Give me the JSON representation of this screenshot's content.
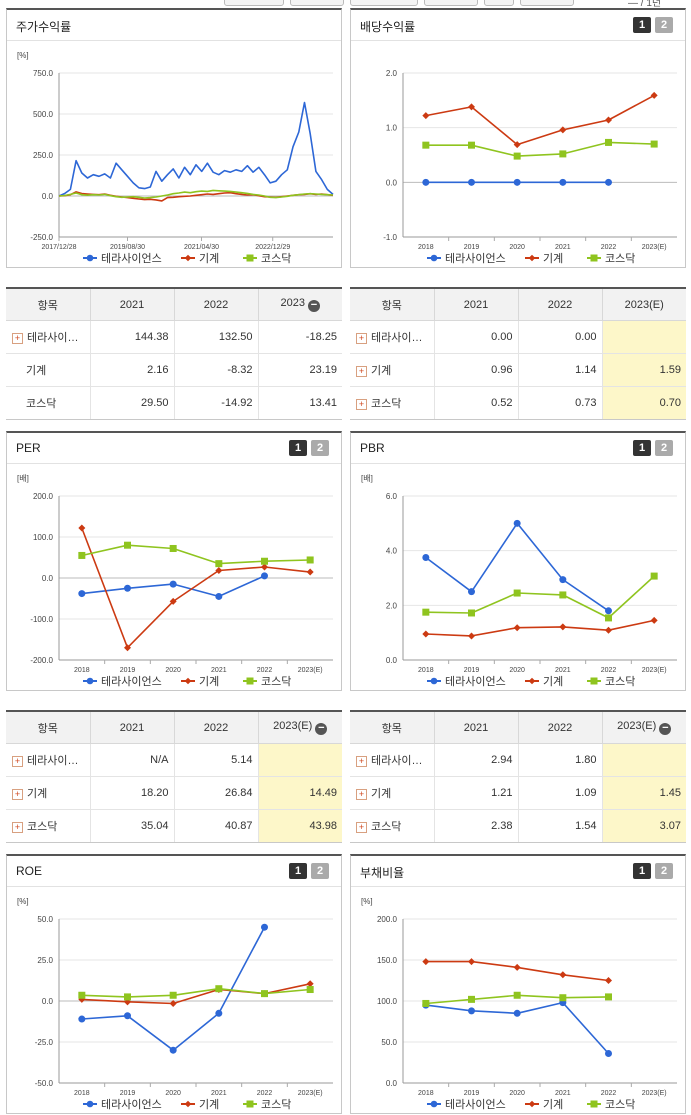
{
  "colors": {
    "tera": "#2d67d6",
    "mach": "#cc3a12",
    "kosdaq": "#8fc41f"
  },
  "legend": [
    "테라사이언스",
    "기계",
    "코스닥"
  ],
  "top_strip": {
    "right_text": "— / 1년"
  },
  "panels": [
    {
      "id": "stock",
      "title": "주가수익률",
      "unit": "[%]",
      "pager": null,
      "chart_data": {
        "type": "line",
        "ylim": [
          -250,
          750
        ],
        "yticks": [
          "750.0",
          "500.0",
          "250.0",
          "0.0",
          "-250.0"
        ],
        "ytick_values": [
          750,
          500,
          250,
          0,
          -250
        ],
        "xtick_labels": [
          "2017/12/28",
          "2019/08/30",
          "2021/04/30",
          "2022/12/29"
        ],
        "xtick_pos": [
          0,
          0.25,
          0.52,
          0.78
        ],
        "markers": false,
        "series": [
          {
            "name": "테라사이언스",
            "values": [
              0,
              15,
              40,
              215,
              140,
              110,
              130,
              120,
              135,
              110,
              200,
              160,
              120,
              80,
              50,
              45,
              55,
              150,
              90,
              130,
              165,
              110,
              175,
              130,
              190,
              150,
              200,
              145,
              130,
              155,
              145,
              160,
              150,
              185,
              145,
              175,
              130,
              80,
              90,
              130,
              160,
              300,
              390,
              570,
              380,
              150,
              100,
              40,
              10
            ]
          },
          {
            "name": "기계",
            "values": [
              0,
              2,
              8,
              25,
              15,
              12,
              10,
              8,
              12,
              4,
              -2,
              -6,
              -10,
              -14,
              -18,
              -22,
              -20,
              -24,
              -30,
              -10,
              -8,
              -4,
              -2,
              0,
              4,
              8,
              12,
              10,
              14,
              18,
              20,
              14,
              10,
              6,
              8,
              2,
              -4,
              -6,
              -8,
              -4,
              0,
              4,
              8,
              10,
              14,
              10,
              12,
              8,
              4
            ]
          },
          {
            "name": "코스닥",
            "values": [
              0,
              3,
              10,
              18,
              8,
              5,
              8,
              6,
              10,
              2,
              -4,
              -8,
              -6,
              -4,
              -8,
              -12,
              -10,
              -6,
              0,
              6,
              14,
              18,
              24,
              20,
              26,
              30,
              28,
              34,
              32,
              30,
              28,
              24,
              20,
              16,
              10,
              6,
              0,
              -8,
              -10,
              -6,
              -2,
              4,
              8,
              12,
              14,
              12,
              10,
              8,
              6
            ]
          }
        ]
      }
    },
    {
      "id": "div",
      "title": "배당수익률",
      "unit": "",
      "pager": [
        "1",
        "2"
      ],
      "chart_data": {
        "type": "line",
        "ylim": [
          -1,
          2
        ],
        "yticks": [
          "2.0",
          "1.0",
          "0.0",
          "-1.0"
        ],
        "ytick_values": [
          2,
          1,
          0,
          -1
        ],
        "categories": [
          "2018",
          "2019",
          "2020",
          "2021",
          "2022",
          "2023(E)"
        ],
        "markers": true,
        "series": [
          {
            "name": "테라사이언스",
            "values": [
              0,
              0,
              0,
              0,
              0,
              null
            ]
          },
          {
            "name": "기계",
            "values": [
              1.22,
              1.38,
              0.69,
              0.96,
              1.14,
              1.59
            ]
          },
          {
            "name": "코스닥",
            "values": [
              0.68,
              0.68,
              0.48,
              0.52,
              0.73,
              0.7
            ]
          }
        ]
      }
    },
    {
      "id": "per",
      "title": "PER",
      "unit": "[배]",
      "pager": [
        "1",
        "2"
      ],
      "chart_data": {
        "type": "line",
        "ylim": [
          -200,
          200
        ],
        "yticks": [
          "200.0",
          "100.0",
          "0.0",
          "-100.0",
          "-200.0"
        ],
        "ytick_values": [
          200,
          100,
          0,
          -100,
          -200
        ],
        "categories": [
          "2018",
          "2019",
          "2020",
          "2021",
          "2022",
          "2023(E)"
        ],
        "markers": true,
        "series": [
          {
            "name": "테라사이언스",
            "values": [
              -38,
              -25,
              -15,
              -45,
              5.14,
              null
            ]
          },
          {
            "name": "기계",
            "values": [
              122,
              -170,
              -57,
              18.2,
              26.84,
              14.49
            ]
          },
          {
            "name": "코스닥",
            "values": [
              55,
              80,
              72,
              35.04,
              40.87,
              43.98
            ]
          }
        ]
      }
    },
    {
      "id": "pbr",
      "title": "PBR",
      "unit": "[배]",
      "pager": [
        "1",
        "2"
      ],
      "chart_data": {
        "type": "line",
        "ylim": [
          0,
          6
        ],
        "yticks": [
          "6.0",
          "4.0",
          "2.0",
          "0.0"
        ],
        "ytick_values": [
          6,
          4,
          2,
          0
        ],
        "categories": [
          "2018",
          "2019",
          "2020",
          "2021",
          "2022",
          "2023(E)"
        ],
        "markers": true,
        "series": [
          {
            "name": "테라사이언스",
            "values": [
              3.75,
              2.5,
              5.0,
              2.94,
              1.8,
              null
            ]
          },
          {
            "name": "기계",
            "values": [
              0.95,
              0.88,
              1.18,
              1.21,
              1.09,
              1.45
            ]
          },
          {
            "name": "코스닥",
            "values": [
              1.75,
              1.72,
              2.45,
              2.38,
              1.54,
              3.07
            ]
          }
        ]
      }
    },
    {
      "id": "roe",
      "title": "ROE",
      "unit": "[%]",
      "pager": [
        "1",
        "2"
      ],
      "chart_data": {
        "type": "line",
        "ylim": [
          -50,
          50
        ],
        "yticks": [
          "50.0",
          "25.0",
          "0.0",
          "-25.0",
          "-50.0"
        ],
        "ytick_values": [
          50,
          25,
          0,
          -25,
          -50
        ],
        "categories": [
          "2018",
          "2019",
          "2020",
          "2021",
          "2022",
          "2023(E)"
        ],
        "markers": true,
        "series": [
          {
            "name": "테라사이언스",
            "values": [
              -11,
              -9,
              -30,
              -7.5,
              45,
              null
            ]
          },
          {
            "name": "기계",
            "values": [
              1,
              -0.5,
              -1.5,
              7,
              4.5,
              10.5
            ]
          },
          {
            "name": "코스닥",
            "values": [
              3.5,
              2.5,
              3.5,
              7.5,
              4.5,
              7
            ]
          }
        ]
      }
    },
    {
      "id": "debt",
      "title": "부채비율",
      "unit": "[%]",
      "pager": [
        "1",
        "2"
      ],
      "chart_data": {
        "type": "line",
        "ylim": [
          0,
          200
        ],
        "yticks": [
          "200.0",
          "150.0",
          "100.0",
          "50.0",
          "0.0"
        ],
        "ytick_values": [
          200,
          150,
          100,
          50,
          0
        ],
        "categories": [
          "2018",
          "2019",
          "2020",
          "2021",
          "2022",
          "2023(E)"
        ],
        "markers": true,
        "series": [
          {
            "name": "테라사이언스",
            "values": [
              95,
              88,
              85,
              98,
              36,
              null
            ]
          },
          {
            "name": "기계",
            "values": [
              148,
              148,
              141,
              132,
              125,
              null
            ]
          },
          {
            "name": "코스닥",
            "values": [
              97,
              102,
              107,
              104,
              105,
              null
            ]
          }
        ]
      }
    }
  ],
  "tables": [
    {
      "id": "t_stock",
      "headers": [
        "항목",
        "2021",
        "2022",
        "2023"
      ],
      "header_minus": true,
      "rows": [
        {
          "plus": true,
          "name": "테라사이…",
          "v": [
            "144.38",
            "132.50",
            "-18.25"
          ]
        },
        {
          "plus": false,
          "name": "기계",
          "v": [
            "2.16",
            "-8.32",
            "23.19"
          ]
        },
        {
          "plus": false,
          "name": "코스닥",
          "v": [
            "29.50",
            "-14.92",
            "13.41"
          ]
        }
      ],
      "highlight_last": false
    },
    {
      "id": "t_div",
      "headers": [
        "항목",
        "2021",
        "2022",
        "2023(E)"
      ],
      "header_minus": false,
      "rows": [
        {
          "plus": true,
          "name": "테라사이…",
          "v": [
            "0.00",
            "0.00",
            ""
          ]
        },
        {
          "plus": true,
          "name": "기계",
          "v": [
            "0.96",
            "1.14",
            "1.59"
          ]
        },
        {
          "plus": true,
          "name": "코스닥",
          "v": [
            "0.52",
            "0.73",
            "0.70"
          ]
        }
      ],
      "highlight_last": true
    },
    {
      "id": "t_per",
      "headers": [
        "항목",
        "2021",
        "2022",
        "2023(E)"
      ],
      "header_minus": true,
      "rows": [
        {
          "plus": true,
          "name": "테라사이…",
          "v": [
            "N/A",
            "5.14",
            ""
          ]
        },
        {
          "plus": true,
          "name": "기계",
          "v": [
            "18.20",
            "26.84",
            "14.49"
          ]
        },
        {
          "plus": true,
          "name": "코스닥",
          "v": [
            "35.04",
            "40.87",
            "43.98"
          ]
        }
      ],
      "highlight_last": true
    },
    {
      "id": "t_pbr",
      "headers": [
        "항목",
        "2021",
        "2022",
        "2023(E)"
      ],
      "header_minus": true,
      "rows": [
        {
          "plus": true,
          "name": "테라사이…",
          "v": [
            "2.94",
            "1.80",
            ""
          ]
        },
        {
          "plus": true,
          "name": "기계",
          "v": [
            "1.21",
            "1.09",
            "1.45"
          ]
        },
        {
          "plus": true,
          "name": "코스닥",
          "v": [
            "2.38",
            "1.54",
            "3.07"
          ]
        }
      ],
      "highlight_last": true
    }
  ]
}
